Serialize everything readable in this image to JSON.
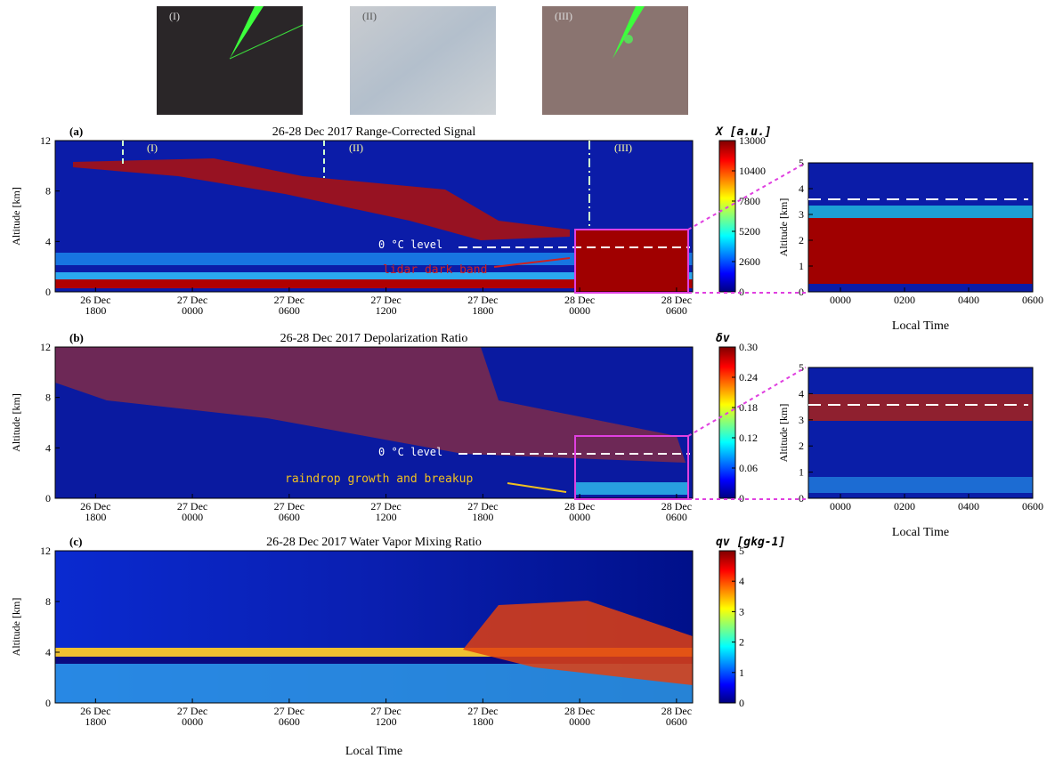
{
  "photo_labels": [
    "(I)",
    "(II)",
    "(III)"
  ],
  "xlabel": "Local Time",
  "chart_data": [
    {
      "type": "heatmap",
      "panel": "(a)",
      "title": "26-28 Dec 2017 Range-Corrected Signal",
      "ylabel": "Altitude [km]",
      "ylim": [
        0,
        12
      ],
      "yticks": [
        0,
        4,
        8,
        12
      ],
      "xlim": [
        15.5,
        55
      ],
      "xticks": [
        {
          "value": 18,
          "label": "26 Dec\n1800"
        },
        {
          "value": 24,
          "label": "27 Dec\n0000"
        },
        {
          "value": 30,
          "label": "27 Dec\n0600"
        },
        {
          "value": 36,
          "label": "27 Dec\n1200"
        },
        {
          "value": 42,
          "label": "27 Dec\n1800"
        },
        {
          "value": 48,
          "label": "28 Dec\n0000"
        },
        {
          "value": 54,
          "label": "28 Dec\n0600"
        }
      ],
      "colorbar_label": "X [a.u.]",
      "clim": [
        0,
        13000
      ],
      "cticks": [
        0,
        2600,
        5200,
        7800,
        10400,
        13000
      ],
      "annotations": [
        "(I)",
        "(II)",
        "(III)",
        "0 °C level",
        "lidar dark band"
      ]
    },
    {
      "type": "heatmap",
      "panel": "(b)",
      "title": "26-28 Dec 2017 Depolarization Ratio",
      "ylabel": "Altitude [km]",
      "ylim": [
        0,
        12
      ],
      "yticks": [
        0,
        4,
        8,
        12
      ],
      "xlim": [
        15.5,
        55
      ],
      "xticks": [
        {
          "value": 18,
          "label": "26 Dec\n1800"
        },
        {
          "value": 24,
          "label": "27 Dec\n0000"
        },
        {
          "value": 30,
          "label": "27 Dec\n0600"
        },
        {
          "value": 36,
          "label": "27 Dec\n1200"
        },
        {
          "value": 42,
          "label": "27 Dec\n1800"
        },
        {
          "value": 48,
          "label": "28 Dec\n0000"
        },
        {
          "value": 54,
          "label": "28 Dec\n0600"
        }
      ],
      "colorbar_label": "δv",
      "clim": [
        0,
        0.3
      ],
      "cticks": [
        0,
        0.06,
        0.12,
        0.18,
        0.24,
        {
          "value": 0.3,
          "label": "0.30"
        }
      ],
      "annotations": [
        "0 °C level",
        "raindrop growth and breakup"
      ]
    },
    {
      "type": "heatmap",
      "panel": "(c)",
      "title": "26-28 Dec 2017 Water Vapor Mixing Ratio",
      "ylabel": "Altitude [km]",
      "ylim": [
        0,
        12
      ],
      "yticks": [
        0,
        4,
        8,
        12
      ],
      "xlim": [
        15.5,
        55
      ],
      "xticks": [
        {
          "value": 18,
          "label": "26 Dec\n1800"
        },
        {
          "value": 24,
          "label": "27 Dec\n0000"
        },
        {
          "value": 30,
          "label": "27 Dec\n0600"
        },
        {
          "value": 36,
          "label": "27 Dec\n1200"
        },
        {
          "value": 42,
          "label": "27 Dec\n1800"
        },
        {
          "value": 48,
          "label": "28 Dec\n0000"
        },
        {
          "value": 54,
          "label": "28 Dec\n0600"
        }
      ],
      "colorbar_label": "qv [gkg-1]",
      "clim": [
        0,
        5
      ],
      "cticks": [
        0,
        1,
        2,
        3,
        4,
        5
      ],
      "annotations": []
    },
    {
      "type": "heatmap",
      "ylabel": "Altitude [km]",
      "xlabel": "Local Time",
      "ylim": [
        0,
        5
      ],
      "yticks": [
        0,
        1,
        2,
        3,
        4,
        5
      ],
      "xlim": [
        -1,
        6
      ],
      "xticks": [
        {
          "value": 0,
          "label": "0000"
        },
        {
          "value": 2,
          "label": "0200"
        },
        {
          "value": 4,
          "label": "0400"
        },
        {
          "value": 6,
          "label": "0600"
        }
      ]
    },
    {
      "type": "heatmap",
      "ylabel": "Altitude [km]",
      "xlabel": "Local Time",
      "ylim": [
        0,
        5
      ],
      "yticks": [
        0,
        1,
        2,
        3,
        4,
        5
      ],
      "xlim": [
        -1,
        6
      ],
      "xticks": [
        {
          "value": 0,
          "label": "0000"
        },
        {
          "value": 2,
          "label": "0200"
        },
        {
          "value": 4,
          "label": "0400"
        },
        {
          "value": 6,
          "label": "0600"
        }
      ]
    }
  ]
}
